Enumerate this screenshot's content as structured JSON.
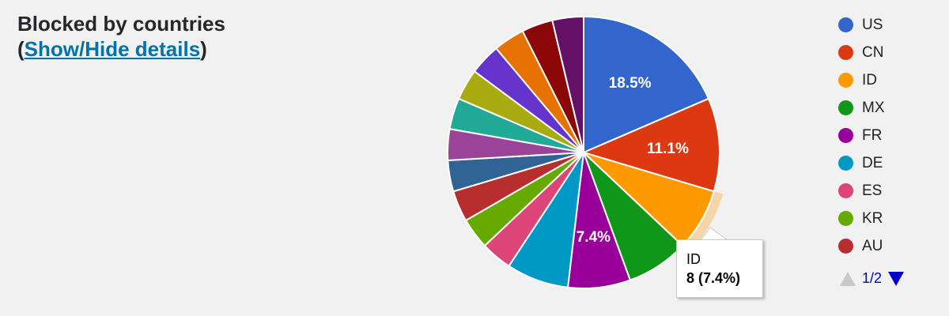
{
  "header": {
    "title": "Blocked by countries",
    "details_open": "(",
    "details_link": "Show/Hide details",
    "details_close": ")"
  },
  "tooltip": {
    "label": "ID",
    "value": "8 (7.4%)"
  },
  "pager": {
    "text": "1/2"
  },
  "chart_data": {
    "type": "pie",
    "title": "Blocked by countries",
    "legend_position": "right",
    "highlighted": "ID",
    "slices": [
      {
        "label": "US",
        "percent": 18.5,
        "color": "#3366cc",
        "show_label": true
      },
      {
        "label": "CN",
        "percent": 11.1,
        "color": "#dc3912",
        "show_label": true
      },
      {
        "label": "ID",
        "percent": 7.4,
        "color": "#ff9900",
        "show_label": false,
        "count": 8
      },
      {
        "label": "MX",
        "percent": 7.4,
        "color": "#109618",
        "show_label": false
      },
      {
        "label": "FR",
        "percent": 7.4,
        "color": "#990099",
        "show_label": true
      },
      {
        "label": "DE",
        "percent": 7.4,
        "color": "#0099c6",
        "show_label": false
      },
      {
        "label": "ES",
        "percent": 3.7,
        "color": "#dd4477",
        "show_label": false
      },
      {
        "label": "KR",
        "percent": 3.7,
        "color": "#66aa00",
        "show_label": false
      },
      {
        "label": "AU",
        "percent": 3.7,
        "color": "#b82e2e",
        "show_label": false
      },
      {
        "label": "",
        "percent": 3.7,
        "color": "#316395",
        "show_label": false
      },
      {
        "label": "",
        "percent": 3.7,
        "color": "#994499",
        "show_label": false
      },
      {
        "label": "",
        "percent": 3.7,
        "color": "#22aa99",
        "show_label": false
      },
      {
        "label": "",
        "percent": 3.7,
        "color": "#aaaa11",
        "show_label": false
      },
      {
        "label": "",
        "percent": 3.7,
        "color": "#6633cc",
        "show_label": false
      },
      {
        "label": "",
        "percent": 3.7,
        "color": "#e67300",
        "show_label": false
      },
      {
        "label": "",
        "percent": 3.7,
        "color": "#8b0707",
        "show_label": false
      },
      {
        "label": "",
        "percent": 3.7,
        "color": "#651067",
        "show_label": false
      }
    ]
  }
}
